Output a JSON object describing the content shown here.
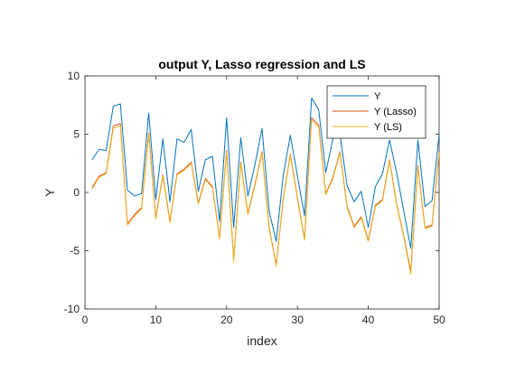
{
  "chart_data": {
    "type": "line",
    "title": "output Y, Lasso regression and LS",
    "xlabel": "index",
    "ylabel": "Y",
    "xlim": [
      0,
      50
    ],
    "ylim": [
      -10,
      10
    ],
    "xticks": [
      0,
      10,
      20,
      30,
      40,
      50
    ],
    "yticks": [
      -10,
      -5,
      0,
      5,
      10
    ],
    "xtick_labels": [
      "0",
      "10",
      "20",
      "30",
      "40",
      "50"
    ],
    "ytick_labels": [
      "-10",
      "-5",
      "0",
      "5",
      "10"
    ],
    "grid": false,
    "legend_position": "top-right",
    "x": [
      1,
      2,
      3,
      4,
      5,
      6,
      7,
      8,
      9,
      10,
      11,
      12,
      13,
      14,
      15,
      16,
      17,
      18,
      19,
      20,
      21,
      22,
      23,
      24,
      25,
      26,
      27,
      28,
      29,
      30,
      31,
      32,
      33,
      34,
      35,
      36,
      37,
      38,
      39,
      40,
      41,
      42,
      43,
      44,
      45,
      46,
      47,
      48,
      49,
      50
    ],
    "series": [
      {
        "name": "Y",
        "color": "#0072BD",
        "values": [
          2.8,
          3.7,
          3.6,
          7.4,
          7.6,
          0.2,
          -0.3,
          -0.1,
          6.8,
          -0.6,
          4.6,
          -0.8,
          4.6,
          4.3,
          5.4,
          0.1,
          2.8,
          3.1,
          -2.5,
          6.4,
          -3.0,
          4.7,
          -0.3,
          2.4,
          5.5,
          -1.6,
          -4.2,
          1.5,
          4.9,
          1.4,
          -2.0,
          8.1,
          7.1,
          1.7,
          4.6,
          5.0,
          0.6,
          -0.8,
          0.1,
          -3.0,
          0.5,
          1.6,
          4.5,
          1.7,
          -1.6,
          -4.8,
          4.5,
          -1.2,
          -0.7,
          5.0
        ]
      },
      {
        "name": "Y (Lasso)",
        "color": "#D95319",
        "values": [
          0.4,
          1.4,
          1.7,
          5.7,
          5.9,
          -2.7,
          -1.9,
          -1.3,
          5.1,
          -2.2,
          1.5,
          -2.5,
          1.6,
          2.0,
          2.6,
          -0.9,
          1.2,
          0.5,
          -3.9,
          3.6,
          -5.8,
          2.6,
          -1.8,
          0.7,
          3.5,
          -3.0,
          -6.2,
          -0.5,
          3.3,
          -0.5,
          -4.0,
          6.4,
          5.8,
          -0.1,
          1.3,
          3.5,
          -1.2,
          -2.9,
          -2.1,
          -4.1,
          -1.1,
          -0.6,
          2.8,
          -1.0,
          -3.7,
          -6.8,
          2.3,
          -3.0,
          -2.8,
          3.5
        ]
      },
      {
        "name": "Y (LS)",
        "color": "#EDB120",
        "values": [
          0.3,
          1.3,
          1.6,
          5.5,
          5.7,
          -2.8,
          -2.0,
          -1.4,
          5.0,
          -2.3,
          1.4,
          -2.6,
          1.5,
          1.9,
          2.5,
          -1.0,
          1.1,
          0.4,
          -4.0,
          3.5,
          -5.9,
          2.5,
          -1.9,
          0.6,
          3.4,
          -3.1,
          -6.3,
          -0.6,
          3.2,
          -0.6,
          -4.1,
          6.2,
          5.6,
          -0.2,
          1.2,
          3.4,
          -1.3,
          -3.0,
          -2.2,
          -4.2,
          -1.2,
          -0.7,
          2.7,
          -1.1,
          -3.8,
          -7.0,
          2.2,
          -3.1,
          -2.9,
          3.4
        ]
      }
    ]
  }
}
